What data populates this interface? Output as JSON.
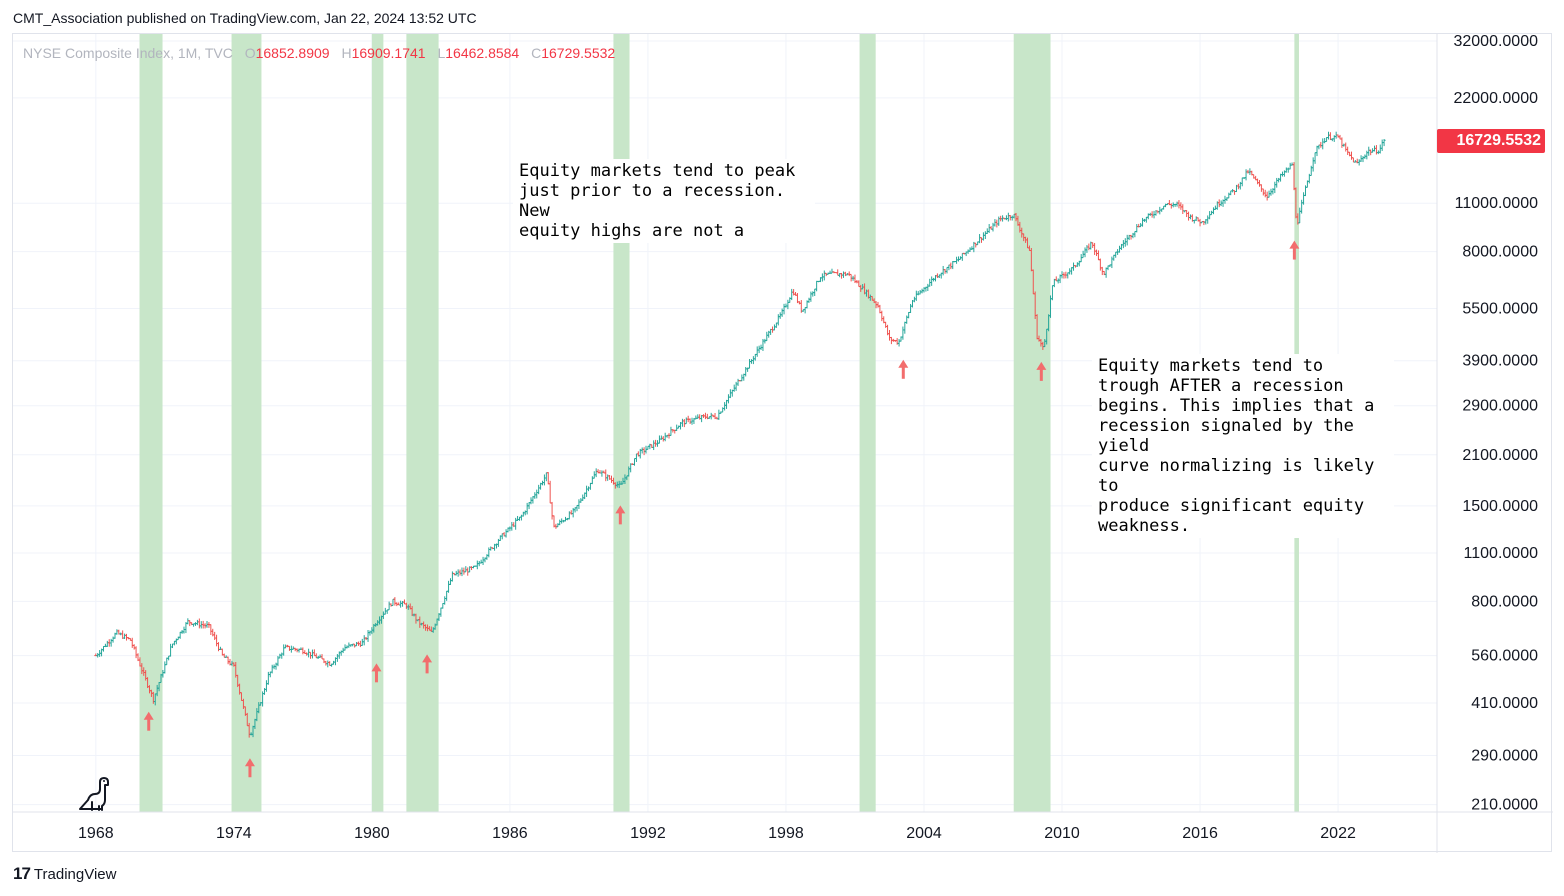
{
  "publisher": "CMT_Association published on TradingView.com, Jan 22, 2024 13:52 UTC",
  "legend": {
    "symbol": "NYSE Composite Index, 1M, TVC",
    "open_label": "O",
    "open": "16852.8909",
    "high_label": "H",
    "high": "16909.1741",
    "low_label": "L",
    "low": "16462.8584",
    "close_label": "C",
    "close": "16729.5532"
  },
  "price_badge": "16729.5532",
  "annotations": {
    "peak_note": "Equity markets tend to peak\njust prior to a recession. New\nequity highs are not a",
    "trough_note": "Equity markets tend to\ntrough AFTER a recession\nbegins. This implies that a\nrecession signaled by the yield\ncurve normalizing is likely to\nproduce significant equity\nweakness."
  },
  "footer": {
    "logo": "17",
    "brand": "TradingView"
  },
  "colors": {
    "up": "#26a69a",
    "down": "#ef5350",
    "recession": "#c8e6c9",
    "arrow": "#f26d6d",
    "badge": "#f23645"
  },
  "icons": {
    "mascot": "dinosaur-icon",
    "arrow": "up-arrow-icon"
  },
  "chart_data": {
    "type": "line",
    "title": "NYSE Composite Index, 1M, TVC",
    "xlabel": "",
    "ylabel": "",
    "x_ticks": [
      "1968",
      "1974",
      "1980",
      "1986",
      "1992",
      "1998",
      "2004",
      "2010",
      "2016",
      "2022"
    ],
    "y_ticks": [
      "32000.0000",
      "22000.0000",
      "11000.0000",
      "8000.0000",
      "5500.0000",
      "3900.0000",
      "2900.0000",
      "2100.0000",
      "1500.0000",
      "1100.0000",
      "800.0000",
      "560.0000",
      "410.0000",
      "290.0000",
      "210.0000"
    ],
    "y_scale": "log",
    "xlim": [
      1964.4,
      2026.3
    ],
    "ylim": [
      200,
      33500
    ],
    "grid": true,
    "last_value": 16729.5532,
    "series": [
      {
        "x": [
          1968.0,
          1968.9,
          1969.5,
          1970.5,
          1971.3,
          1972.0,
          1972.9,
          1973.5,
          1974.0,
          1974.7,
          1975.5,
          1976.2,
          1977.0,
          1978.2,
          1978.8,
          1979.6,
          1980.2,
          1980.9,
          1981.5,
          1982.0,
          1982.6,
          1983.5,
          1984.5,
          1985.5,
          1986.5,
          1987.6,
          1987.9,
          1988.8,
          1989.8,
          1990.3,
          1990.8,
          1991.5,
          1992.5,
          1993.5,
          1994.5,
          1995.0,
          1995.8,
          1996.8,
          1997.8,
          1998.3,
          1998.7,
          1999.5,
          2000.0,
          2000.7,
          2001.3,
          2002.0,
          2002.5,
          2002.9,
          2003.5,
          2004.5,
          2005.5,
          2006.5,
          2007.3,
          2007.9,
          2008.6,
          2008.9,
          2009.2,
          2009.6,
          2010.5,
          2011.3,
          2011.8,
          2012.5,
          2013.5,
          2014.5,
          2015.0,
          2015.6,
          2016.1,
          2016.8,
          2017.5,
          2018.1,
          2018.9,
          2019.5,
          2020.0,
          2020.2,
          2020.6,
          2021.0,
          2021.5,
          2022.0,
          2022.4,
          2022.8,
          2023.3,
          2023.8,
          2024.0
        ],
        "values": [
          560,
          650,
          620,
          420,
          600,
          700,
          680,
          560,
          520,
          330,
          490,
          590,
          580,
          530,
          590,
          610,
          700,
          800,
          780,
          700,
          650,
          950,
          1000,
          1200,
          1400,
          1850,
          1300,
          1450,
          1900,
          1800,
          1700,
          2100,
          2300,
          2600,
          2700,
          2700,
          3300,
          4200,
          5300,
          6200,
          5400,
          6800,
          6900,
          6900,
          6300,
          5600,
          4500,
          4400,
          5800,
          6800,
          7600,
          8800,
          9900,
          10200,
          8000,
          4600,
          4200,
          6500,
          7200,
          8500,
          6900,
          8200,
          9800,
          10900,
          10900,
          10000,
          9700,
          11000,
          12000,
          13600,
          11500,
          13100,
          14200,
          9500,
          12200,
          15500,
          17000,
          17000,
          15300,
          14200,
          15500,
          15600,
          16730
        ]
      }
    ],
    "recessions": [
      [
        1969.9,
        1970.9
      ],
      [
        1973.9,
        1975.2
      ],
      [
        1980.0,
        1980.5
      ],
      [
        1981.5,
        1982.9
      ],
      [
        1990.5,
        1991.2
      ],
      [
        2001.2,
        2001.9
      ],
      [
        2007.9,
        2009.5
      ],
      [
        2020.1,
        2020.3
      ]
    ],
    "trough_arrows": [
      [
        1970.3,
        360
      ],
      [
        1974.7,
        265
      ],
      [
        1980.2,
        495
      ],
      [
        1982.4,
        525
      ],
      [
        1990.8,
        1400
      ],
      [
        2003.1,
        3650
      ],
      [
        2009.1,
        3600
      ],
      [
        2020.1,
        8000
      ]
    ]
  }
}
